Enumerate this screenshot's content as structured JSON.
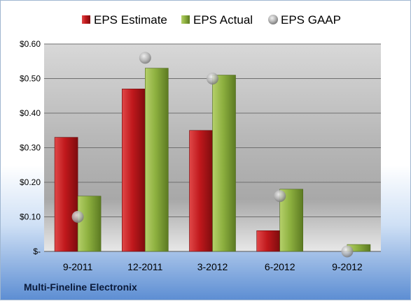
{
  "company": "Multi-Fineline Electronix",
  "chart_data": {
    "type": "bar",
    "categories": [
      "9-2011",
      "12-2011",
      "3-2012",
      "6-2012",
      "9-2012"
    ],
    "series": [
      {
        "name": "EPS Estimate",
        "values": [
          0.33,
          0.47,
          0.35,
          0.06,
          null
        ],
        "color": "#c0181c"
      },
      {
        "name": "EPS Actual",
        "values": [
          0.16,
          0.53,
          0.51,
          0.18,
          0.02
        ],
        "color": "#8db03f"
      },
      {
        "name": "EPS GAAP",
        "values": [
          0.1,
          0.56,
          0.5,
          0.16,
          0.0
        ],
        "color": "#b0b0b0",
        "marker": "circle"
      }
    ],
    "ylim": [
      0,
      0.6
    ],
    "yticks": [
      {
        "value": 0.6,
        "label": "$0.60"
      },
      {
        "value": 0.5,
        "label": "$0.50"
      },
      {
        "value": 0.4,
        "label": "$0.40"
      },
      {
        "value": 0.3,
        "label": "$0.30"
      },
      {
        "value": 0.2,
        "label": "$0.20"
      },
      {
        "value": 0.1,
        "label": "$0.10"
      },
      {
        "value": 0,
        "label": "$-"
      }
    ],
    "grid": true,
    "legend_position": "top"
  }
}
